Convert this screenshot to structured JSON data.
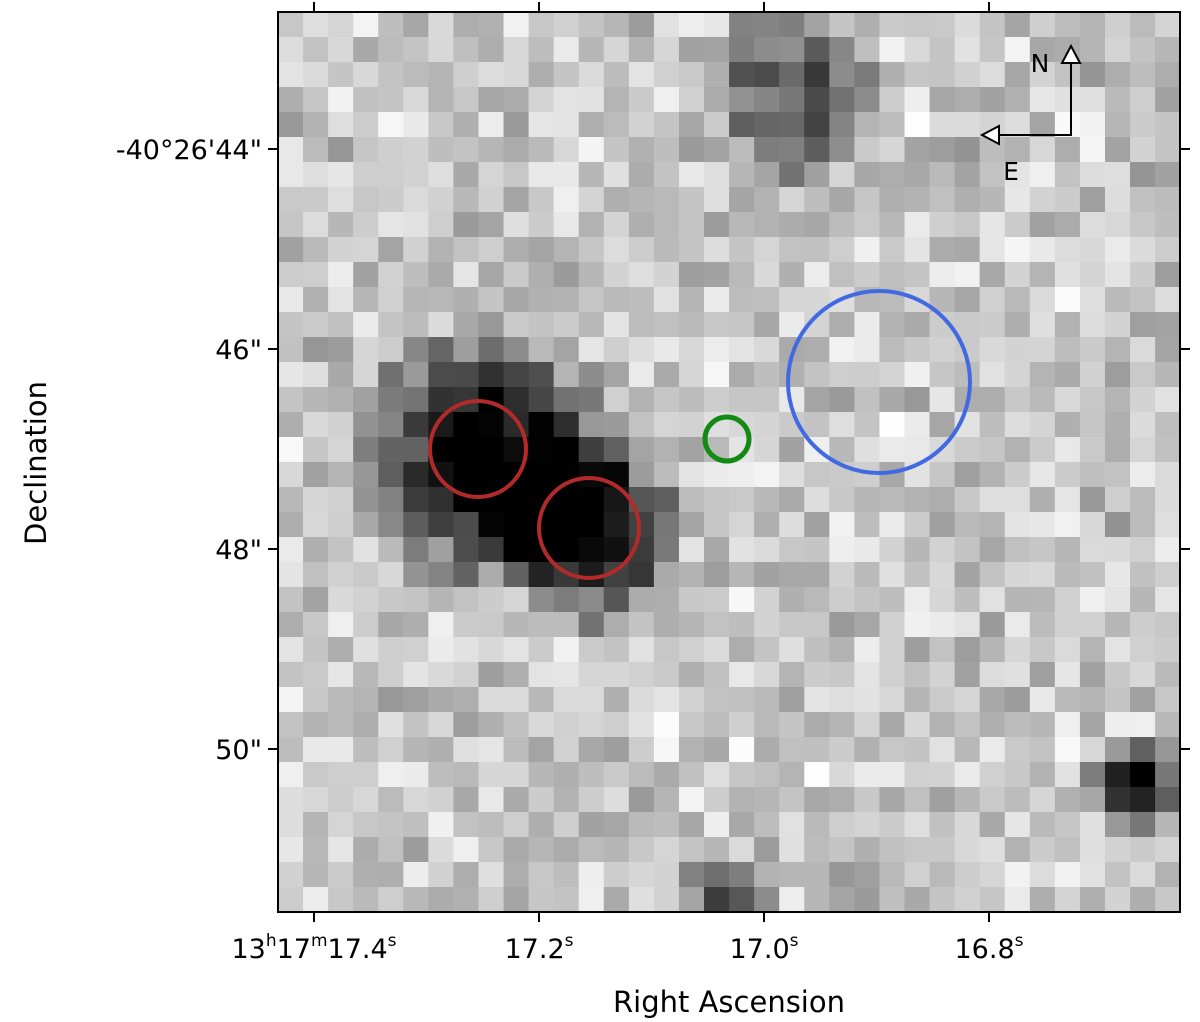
{
  "image": {
    "grid": {
      "cols": 36,
      "rows": 36,
      "cmap": "gray",
      "seed": 7
    },
    "dark_blobs": [
      {
        "region": "left-center",
        "intensity": "black"
      },
      {
        "region": "center-lower",
        "intensity": "black"
      },
      {
        "region": "top-center",
        "intensity": "dark"
      },
      {
        "region": "right-lower",
        "intensity": "black"
      },
      {
        "region": "bottom-center",
        "intensity": "black"
      }
    ]
  },
  "x_axis": {
    "label": "Right Ascension",
    "ticks": [
      {
        "base": "13",
        "h": "h",
        "m_val": "17",
        "m": "m",
        "s_val": "17.4",
        "s": "s"
      },
      {
        "s_val": "17.2",
        "s": "s"
      },
      {
        "s_val": "17.0",
        "s": "s"
      },
      {
        "s_val": "16.8",
        "s": "s"
      }
    ]
  },
  "y_axis": {
    "label": "Declination",
    "ticks": [
      "-40°26'44\"",
      "46\"",
      "48\"",
      "50\""
    ]
  },
  "compass": {
    "north": "N",
    "east": "E"
  },
  "circles": [
    {
      "name": "red-circle-1",
      "color": "#b22a2a"
    },
    {
      "name": "red-circle-2",
      "color": "#b22a2a"
    },
    {
      "name": "green-circle",
      "color": "#138a13"
    },
    {
      "name": "blue-circle",
      "color": "#4169e1"
    }
  ]
}
